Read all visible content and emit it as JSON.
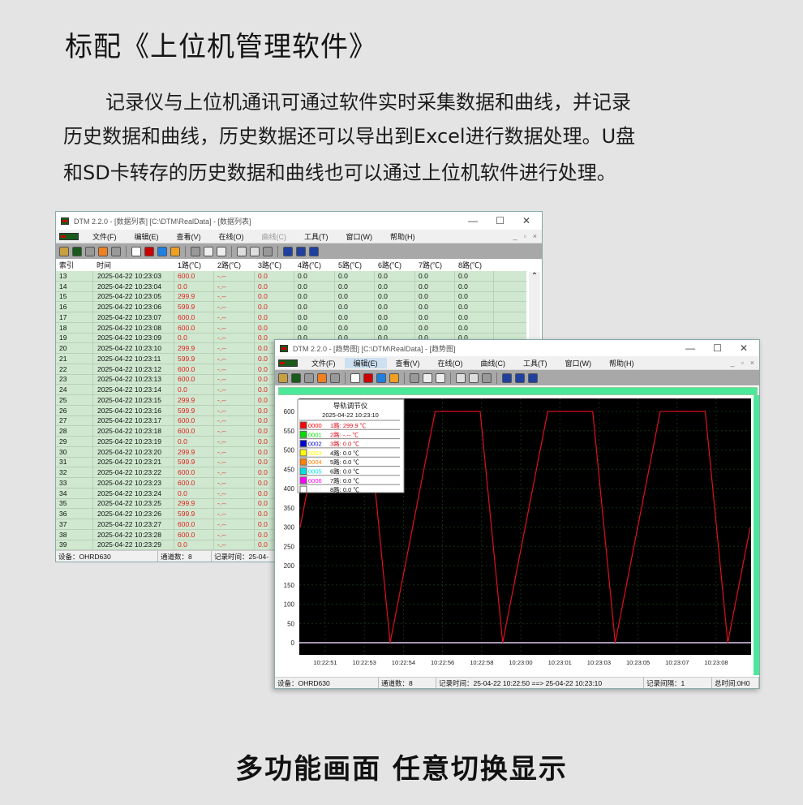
{
  "heading": "标配《上位机管理软件》",
  "paragraph": [
    "记录仪与上位机通讯可通过软件实时采集数据和曲线，并记录",
    "历史数据和曲线，历史数据还可以导出到Excel进行数据处理。U盘",
    "和SD卡转存的历史数据和曲线也可以通过上位机软件进行处理。"
  ],
  "footer": "多功能画面  任意切换显示",
  "table_window": {
    "title": "DTM 2.2.0 - [数据列表] [C:\\DTM\\RealData] - [数据列表]",
    "menu": [
      "文件(F)",
      "编辑(E)",
      "查看(V)",
      "在线(O)",
      "曲线(C)",
      "工具(T)",
      "窗口(W)",
      "帮助(H)"
    ],
    "columns": [
      "索引",
      "时间",
      "1路(℃)",
      "2路(℃)",
      "3路(℃)",
      "4路(℃)",
      "5路(℃)",
      "6路(℃)",
      "7路(℃)",
      "8路(℃)"
    ],
    "date": "2025-04-22",
    "rows": [
      [
        13,
        "10:23:03",
        "600.0"
      ],
      [
        14,
        "10:23:04",
        "0.0"
      ],
      [
        15,
        "10:23:05",
        "299.9"
      ],
      [
        16,
        "10:23:06",
        "599.9"
      ],
      [
        17,
        "10:23:07",
        "600.0"
      ],
      [
        18,
        "10:23:08",
        "600.0"
      ],
      [
        19,
        "10:23:09",
        "0.0"
      ],
      [
        20,
        "10:23:10",
        "299.9"
      ],
      [
        21,
        "10:23:11",
        "599.9"
      ],
      [
        22,
        "10:23:12",
        "600.0"
      ],
      [
        23,
        "10:23:13",
        "600.0"
      ],
      [
        24,
        "10:23:14",
        "0.0"
      ],
      [
        25,
        "10:23:15",
        "299.9"
      ],
      [
        26,
        "10:23:16",
        "599.9"
      ],
      [
        27,
        "10:23:17",
        "600.0"
      ],
      [
        28,
        "10:23:18",
        "600.0"
      ],
      [
        29,
        "10:23:19",
        "0.0"
      ],
      [
        30,
        "10:23:20",
        "299.9"
      ],
      [
        31,
        "10:23:21",
        "599.9"
      ],
      [
        32,
        "10:23:22",
        "600.0"
      ],
      [
        33,
        "10:23:23",
        "600.0"
      ],
      [
        34,
        "10:23:24",
        "0.0"
      ],
      [
        35,
        "10:23:25",
        "299.9"
      ],
      [
        36,
        "10:23:26",
        "599.9"
      ],
      [
        37,
        "10:23:27",
        "600.0"
      ],
      [
        38,
        "10:23:28",
        "600.0"
      ],
      [
        39,
        "10:23:29",
        "0.0"
      ]
    ],
    "ch2": "-.--",
    "ch_other": "0.0",
    "status": {
      "device": "设备：OHRD630",
      "channels": "通道数：8",
      "record": "记录时间：25-04-"
    }
  },
  "trend_window": {
    "title": "DTM 2.2.0 - [趋势图] [C:\\DTM\\RealData] - [趋势图]",
    "menu": [
      "文件(F)",
      "编辑(E)",
      "查看(V)",
      "在线(O)",
      "曲线(C)",
      "工具(T)",
      "窗口(W)",
      "帮助(H)"
    ],
    "legend": {
      "title": "导轨调节仪",
      "time": "2025-04-22 10:23:10",
      "items": [
        {
          "id": "0000",
          "label": "1路: 299.9 ℃",
          "color": "#ff0000"
        },
        {
          "id": "0001",
          "label": "2路: -.-- ℃",
          "color": "#00dd00"
        },
        {
          "id": "0002",
          "label": "3路: 0.0 ℃",
          "color": "#0000cc"
        },
        {
          "id": "0003",
          "label": "4路: 0.0 ℃",
          "color": "#ffff00"
        },
        {
          "id": "0004",
          "label": "5路: 0.0 ℃",
          "color": "#ff8000"
        },
        {
          "id": "0005",
          "label": "6路: 0.0 ℃",
          "color": "#00e0e0"
        },
        {
          "id": "0006",
          "label": "7路: 0.0 ℃",
          "color": "#ff00ff"
        },
        {
          "id": "0007",
          "label": "8路: 0.0 ℃",
          "color": "#ffffff"
        }
      ]
    },
    "status": {
      "device": "设备：OHRD630",
      "channels": "通道数：8",
      "record": "记录时间：25-04-22 10:22:50 ==> 25-04-22 10:23:10",
      "interval": "记录间隔：1",
      "total": "总时间:0H0"
    },
    "chart_data": {
      "type": "line",
      "ylim": [
        0,
        600
      ],
      "yticks": [
        "0",
        "50",
        "100",
        "150",
        "200",
        "250",
        "300",
        "350",
        "400",
        "450",
        "500",
        "550",
        "600"
      ],
      "xticks": [
        "10:22:51",
        "10:22:53",
        "10:22:54",
        "10:22:56",
        "10:22:58",
        "10:23:00",
        "10:23:01",
        "10:23:03",
        "10:23:05",
        "10:23:07",
        "10:23:08"
      ],
      "series": [
        {
          "color": "#e01020",
          "x": [
            "10:22:50",
            "10:22:51",
            "10:22:52",
            "10:22:53",
            "10:22:54",
            "10:22:55",
            "10:22:56",
            "10:22:57",
            "10:22:58",
            "10:22:59",
            "10:23:00",
            "10:23:01",
            "10:23:02",
            "10:23:03",
            "10:23:04",
            "10:23:05",
            "10:23:06",
            "10:23:07",
            "10:23:08",
            "10:23:09",
            "10:23:10"
          ],
          "values": [
            299.9,
            599.9,
            600,
            600,
            0,
            299.9,
            599.9,
            600,
            600,
            0,
            299.9,
            599.9,
            600,
            600,
            0,
            299.9,
            599.9,
            600,
            600,
            0,
            299.9
          ]
        },
        {
          "color": "#e0c8f0",
          "values": [
            0,
            0
          ]
        }
      ]
    }
  }
}
